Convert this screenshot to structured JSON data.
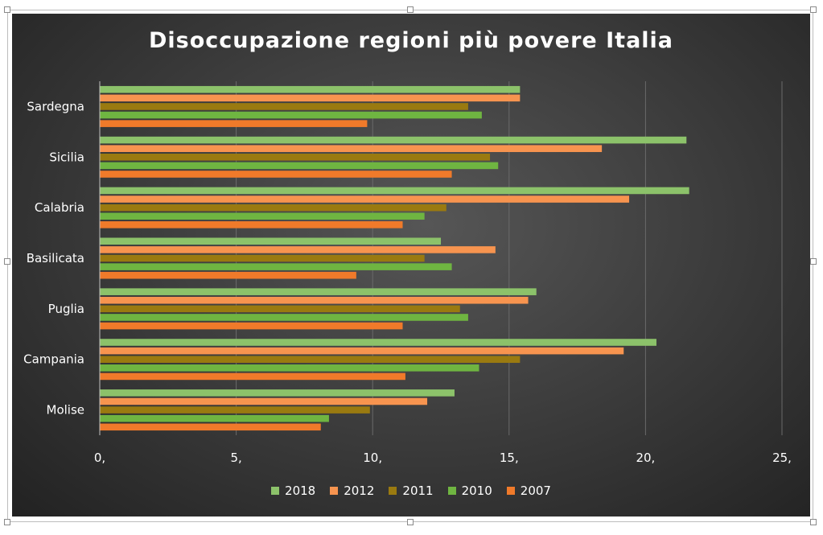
{
  "chart_data": {
    "type": "bar",
    "orientation": "horizontal",
    "title": "Disoccupazione regioni più povere Italia",
    "categories": [
      "Sardegna",
      "Sicilia",
      "Calabria",
      "Basilicata",
      "Puglia",
      "Campania",
      "Molise"
    ],
    "series": [
      {
        "name": "2018",
        "color": "#8cc26a",
        "values": [
          15.4,
          21.5,
          21.6,
          12.5,
          16.0,
          20.4,
          13.0
        ]
      },
      {
        "name": "2012",
        "color": "#f7944f",
        "values": [
          15.4,
          18.4,
          19.4,
          14.5,
          15.7,
          19.2,
          12.0
        ]
      },
      {
        "name": "2011",
        "color": "#9a7a10",
        "values": [
          13.5,
          14.3,
          12.7,
          11.9,
          13.2,
          15.4,
          9.9
        ]
      },
      {
        "name": "2010",
        "color": "#6fb541",
        "values": [
          14.0,
          14.6,
          11.9,
          12.9,
          13.5,
          13.9,
          8.4
        ]
      },
      {
        "name": "2007",
        "color": "#f07a2a",
        "values": [
          9.8,
          12.9,
          11.1,
          9.4,
          11.1,
          11.2,
          8.1
        ]
      }
    ],
    "xlim": [
      0,
      25
    ],
    "xticks": [
      0,
      5,
      10,
      15,
      20,
      25
    ],
    "xtick_labels": [
      "0,",
      "5,",
      "10,",
      "15,",
      "20,",
      "25,"
    ],
    "xlabel": "",
    "ylabel": "",
    "grid": "vertical",
    "legend_position": "bottom"
  }
}
